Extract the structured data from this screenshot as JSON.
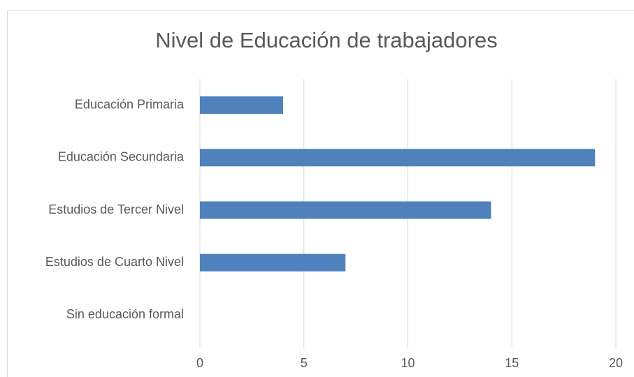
{
  "chart_data": {
    "type": "barh",
    "title": "Nivel de Educación de trabajadores",
    "categories": [
      "Educación Primaria",
      "Educación Secundaria",
      "Estudios de Tercer Nivel",
      "Estudios de Cuarto Nivel",
      "Sin educación formal"
    ],
    "values": [
      4,
      19,
      14,
      7,
      0
    ],
    "color": "#4f81bd",
    "xlim": [
      0,
      20
    ],
    "xticks": [
      0,
      5,
      10,
      15,
      20
    ],
    "grid": true
  }
}
